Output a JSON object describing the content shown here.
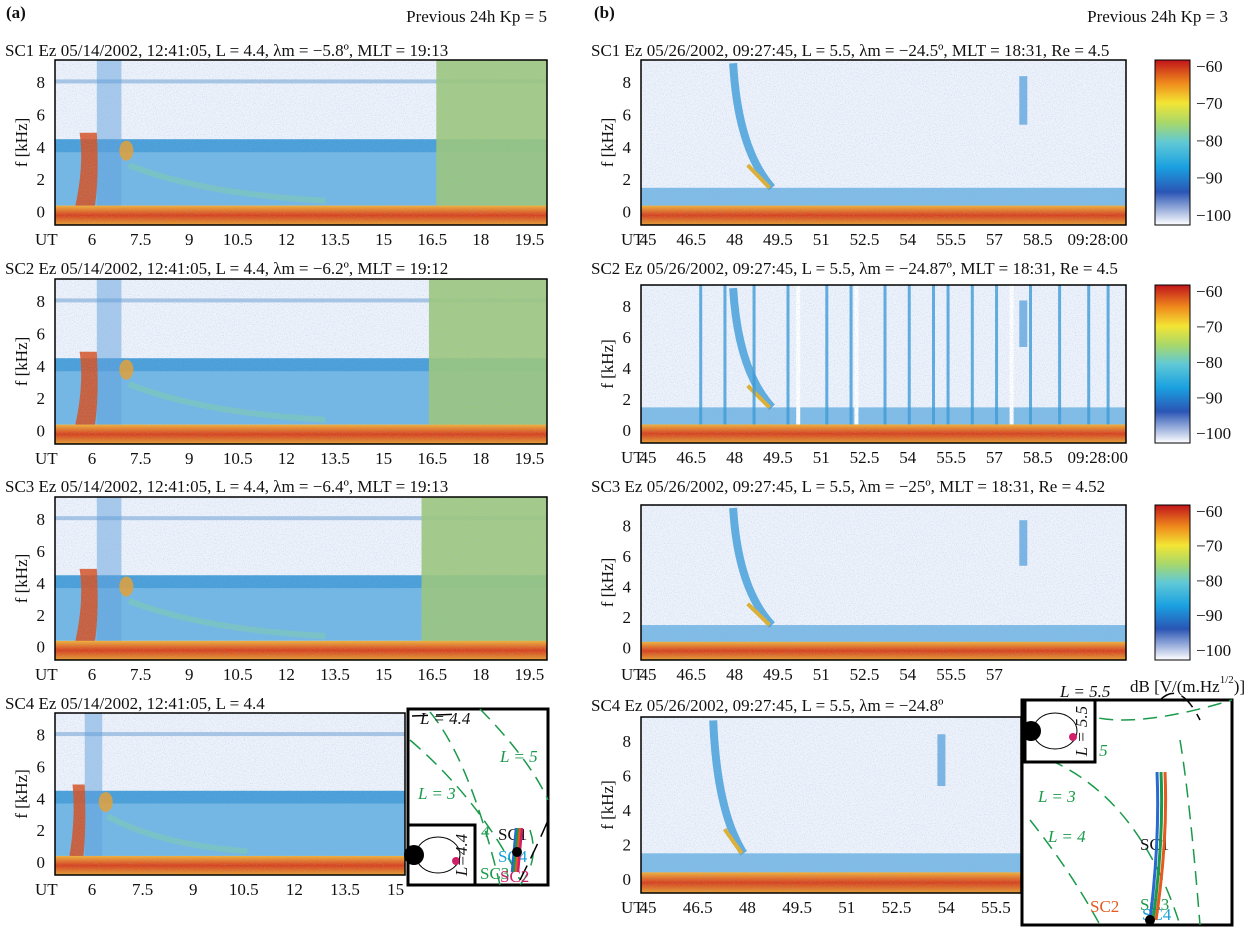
{
  "panel_a": {
    "label": "(a)",
    "kp_note": "Previous 24h Kp = 5",
    "y_ticks": [
      "0",
      "2",
      "4",
      "6",
      "8"
    ],
    "y_axis_label": "f [kHz]",
    "plots": [
      {
        "title": "SC1 Ez 05/14/2002, 12:41:05, L = 4.4, λm = −5.8º, MLT = 19:13",
        "x_ticks": [
          "UT",
          "6",
          "7.5",
          "9",
          "10.5",
          "12",
          "13.5",
          "15",
          "16.5",
          "18",
          "19.5"
        ]
      },
      {
        "title": "SC2 Ez 05/14/2002, 12:41:05, L = 4.4, λm = −6.2º, MLT = 19:12",
        "x_ticks": [
          "UT",
          "6",
          "7.5",
          "9",
          "10.5",
          "12",
          "13.5",
          "15",
          "16.5",
          "18",
          "19.5"
        ]
      },
      {
        "title": "SC3 Ez 05/14/2002, 12:41:05, L = 4.4, λm = −6.4º, MLT = 19:13",
        "x_ticks": [
          "UT",
          "6",
          "7.5",
          "9",
          "10.5",
          "12",
          "13.5",
          "15",
          "16.5",
          "18",
          "19.5"
        ]
      },
      {
        "title": "SC4 Ez 05/14/2002, 12:41:05, L = 4.4",
        "x_ticks": [
          "UT",
          "6",
          "7.5",
          "9",
          "10.5",
          "12",
          "13.5",
          "15"
        ]
      }
    ],
    "inset": {
      "labels": [
        "L = 4.4",
        "L = 5",
        "L = 3",
        "L = 4",
        "SC1",
        "SC4",
        "SC3",
        "SC2"
      ],
      "small_label": "L=4.4"
    }
  },
  "panel_b": {
    "label": "(b)",
    "kp_note": "Previous 24h Kp = 3",
    "y_ticks": [
      "0",
      "2",
      "4",
      "6",
      "8"
    ],
    "y_axis_label": "f [kHz]",
    "plots": [
      {
        "title": "SC1 Ez 05/26/2002, 09:27:45, L = 5.5, λm = −24.5º, MLT = 18:31, Re = 4.5",
        "x_ticks": [
          "UT",
          "45",
          "46.5",
          "48",
          "49.5",
          "51",
          "52.5",
          "54",
          "55.5",
          "57",
          "58.5"
        ],
        "end_time": "09:28:00"
      },
      {
        "title": "SC2 Ez 05/26/2002, 09:27:45, L = 5.5, λm = −24.87º, MLT = 18:31, Re = 4.5",
        "x_ticks": [
          "UT",
          "45",
          "46.5",
          "48",
          "49.5",
          "51",
          "52.5",
          "54",
          "55.5",
          "57",
          "58.5"
        ],
        "end_time": "09:28:00"
      },
      {
        "title": "SC3 Ez 05/26/2002, 09:27:45, L = 5.5, λm = −25º, MLT = 18:31, Re = 4.52",
        "x_ticks": [
          "UT",
          "45",
          "46.5",
          "48",
          "49.5",
          "51",
          "52.5",
          "54",
          "55.5",
          "57"
        ]
      },
      {
        "title": "SC4 Ez 05/26/2002, 09:27:45, L = 5.5, λm = −24.8º",
        "x_ticks": [
          "UT",
          "45",
          "46.5",
          "48",
          "49.5",
          "51",
          "52.5",
          "54",
          "55.5"
        ]
      }
    ],
    "colorbar_ticks": [
      "−60",
      "−70",
      "−80",
      "−90",
      "−100"
    ],
    "colorbar_unit": {
      "main": "dB [V/(m.Hz",
      "sup": "1/2",
      "end": ")]"
    },
    "inset": {
      "labels": [
        "L = 5.5",
        "L = 5",
        "L = 3",
        "L = 4",
        "SC1",
        "SC3",
        "SC2",
        "SC4"
      ],
      "small_label": "L = 5.5"
    }
  }
}
